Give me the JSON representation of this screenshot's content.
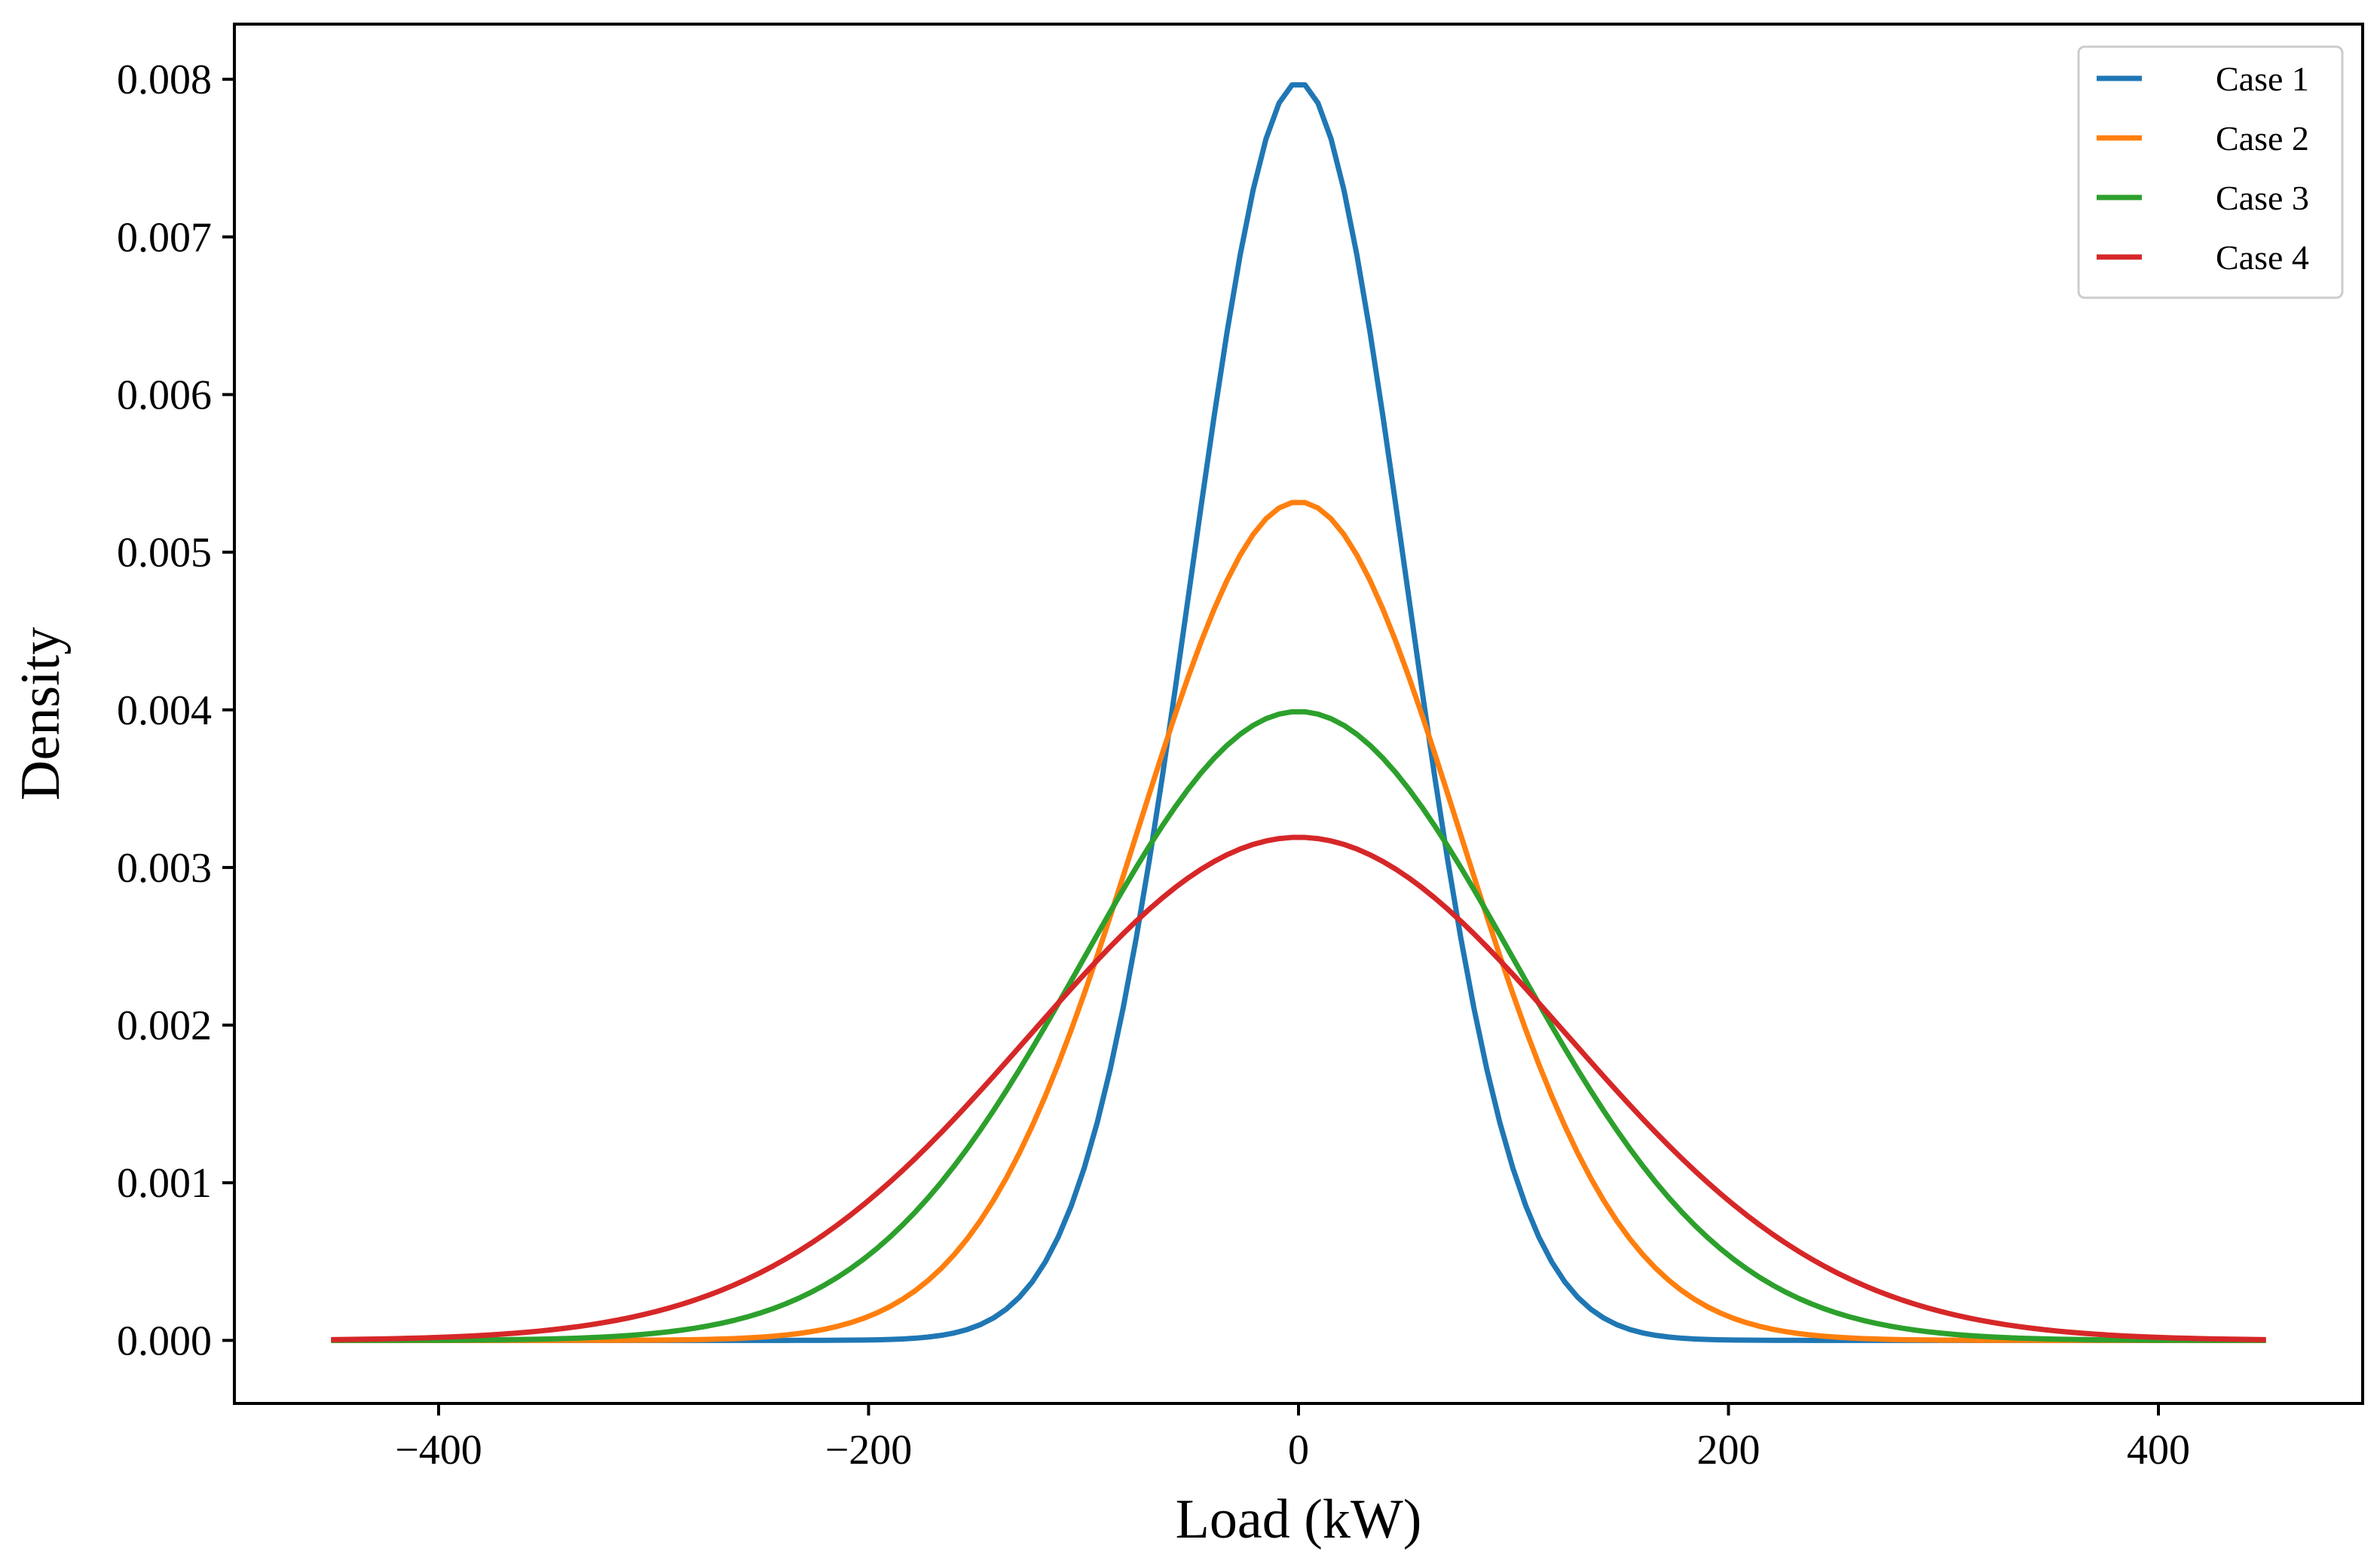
{
  "chart_data": {
    "type": "line",
    "title": "",
    "xlabel": "Load (kW)",
    "ylabel": "Density",
    "xlim": [
      -495,
      495
    ],
    "ylim": [
      -0.0004,
      0.00835
    ],
    "x_range": [
      -450,
      450
    ],
    "xticks": [
      -400,
      -200,
      0,
      200,
      400
    ],
    "xtick_labels": [
      "−400",
      "−200",
      "0",
      "200",
      "400"
    ],
    "yticks": [
      0,
      0.001,
      0.002,
      0.003,
      0.004,
      0.005,
      0.006,
      0.007,
      0.008
    ],
    "ytick_labels": [
      "0.000",
      "0.001",
      "0.002",
      "0.003",
      "0.004",
      "0.005",
      "0.006",
      "0.007",
      "0.008"
    ],
    "grid": false,
    "legend_position": "top-right",
    "series": [
      {
        "name": "Case 1",
        "color": "#1f77b4",
        "distribution": "normal",
        "mean": 0,
        "std": 50,
        "peak_density": 0.00798
      },
      {
        "name": "Case 2",
        "color": "#ff7f0e",
        "distribution": "normal",
        "mean": 0,
        "std": 75,
        "peak_density": 0.00532
      },
      {
        "name": "Case 3",
        "color": "#2ca02c",
        "distribution": "normal",
        "mean": 0,
        "std": 100,
        "peak_density": 0.00399
      },
      {
        "name": "Case 4",
        "color": "#d62728",
        "distribution": "normal",
        "mean": 0,
        "std": 125,
        "peak_density": 0.00319
      }
    ]
  }
}
